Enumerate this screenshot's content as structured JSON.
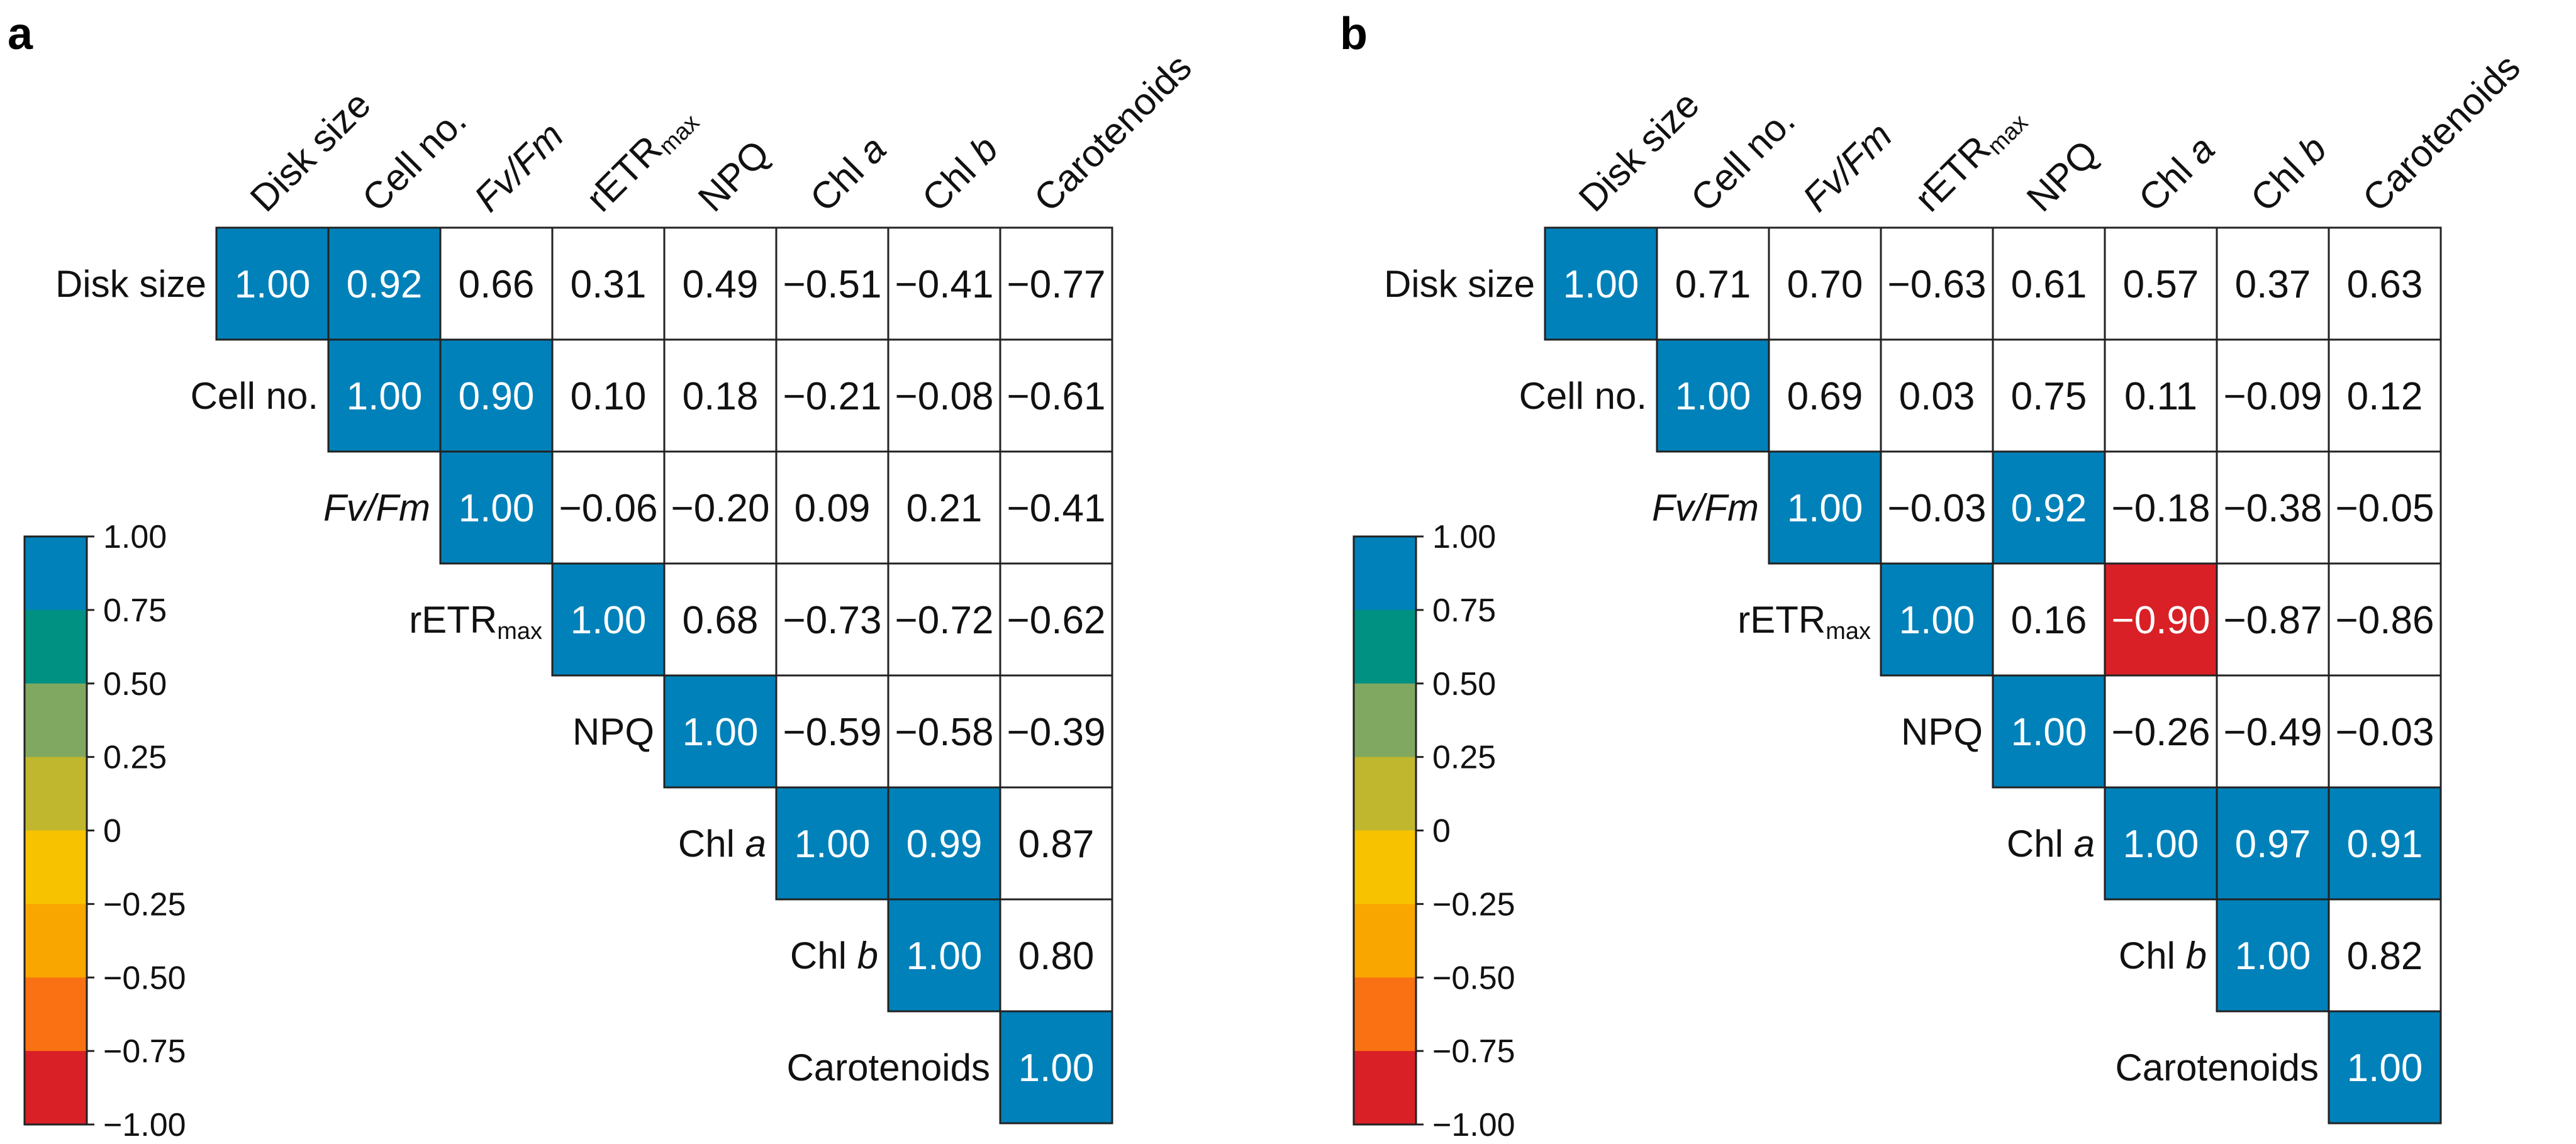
{
  "colors": {
    "significant_positive": "#0081B9",
    "significant_negative": "#D92027",
    "neutral": "#FFFFFF",
    "grid": "#222222"
  },
  "colorbar": {
    "ticks": [
      "1.00",
      "0.75",
      "0.50",
      "0.25",
      "0",
      "−0.25",
      "−0.50",
      "−0.75",
      "−1.00"
    ],
    "bands": [
      "#0081B9",
      "#009182",
      "#80A860",
      "#C0B72E",
      "#F7C300",
      "#F9A600",
      "#F97112",
      "#D92027"
    ]
  },
  "chart_data": [
    {
      "type": "heatmap",
      "panel": "a",
      "title": "",
      "variables": [
        [
          {
            "t": "Disk size"
          }
        ],
        [
          {
            "t": "Cell no."
          }
        ],
        [
          {
            "t": "Fv/Fm",
            "i": 1
          }
        ],
        [
          {
            "t": "rETR"
          },
          {
            "t": "max",
            "sub": 1
          }
        ],
        [
          {
            "t": "NPQ"
          }
        ],
        [
          {
            "t": "Chl "
          },
          {
            "t": "a",
            "i": 1
          }
        ],
        [
          {
            "t": "Chl "
          },
          {
            "t": "b",
            "i": 1
          }
        ],
        [
          {
            "t": "Carotenoids"
          }
        ]
      ],
      "values": [
        [
          "1.00",
          "0.92",
          "0.66",
          "0.31",
          "0.49",
          "−0.51",
          "−0.41",
          "−0.77"
        ],
        [
          null,
          "1.00",
          "0.90",
          "0.10",
          "0.18",
          "−0.21",
          "−0.08",
          "−0.61"
        ],
        [
          null,
          null,
          "1.00",
          "−0.06",
          "−0.20",
          "0.09",
          "0.21",
          "−0.41"
        ],
        [
          null,
          null,
          null,
          "1.00",
          "0.68",
          "−0.73",
          "−0.72",
          "−0.62"
        ],
        [
          null,
          null,
          null,
          null,
          "1.00",
          "−0.59",
          "−0.58",
          "−0.39"
        ],
        [
          null,
          null,
          null,
          null,
          null,
          "1.00",
          "0.99",
          "0.87"
        ],
        [
          null,
          null,
          null,
          null,
          null,
          null,
          "1.00",
          "0.80"
        ],
        [
          null,
          null,
          null,
          null,
          null,
          null,
          null,
          "1.00"
        ]
      ],
      "highlighted": [
        [
          0,
          0
        ],
        [
          0,
          1
        ],
        [
          1,
          1
        ],
        [
          1,
          2
        ],
        [
          2,
          2
        ],
        [
          3,
          3
        ],
        [
          4,
          4
        ],
        [
          5,
          5
        ],
        [
          5,
          6
        ],
        [
          6,
          6
        ],
        [
          7,
          7
        ]
      ],
      "color_range": [
        -1,
        1
      ]
    },
    {
      "type": "heatmap",
      "panel": "b",
      "title": "",
      "variables": [
        [
          {
            "t": "Disk size"
          }
        ],
        [
          {
            "t": "Cell no."
          }
        ],
        [
          {
            "t": "Fv/Fm",
            "i": 1
          }
        ],
        [
          {
            "t": "rETR"
          },
          {
            "t": "max",
            "sub": 1
          }
        ],
        [
          {
            "t": "NPQ"
          }
        ],
        [
          {
            "t": "Chl "
          },
          {
            "t": "a",
            "i": 1
          }
        ],
        [
          {
            "t": "Chl "
          },
          {
            "t": "b",
            "i": 1
          }
        ],
        [
          {
            "t": "Carotenoids"
          }
        ]
      ],
      "values": [
        [
          "1.00",
          "0.71",
          "0.70",
          "−0.63",
          "0.61",
          "0.57",
          "0.37",
          "0.63"
        ],
        [
          null,
          "1.00",
          "0.69",
          "0.03",
          "0.75",
          "0.11",
          "−0.09",
          "0.12"
        ],
        [
          null,
          null,
          "1.00",
          "−0.03",
          "0.92",
          "−0.18",
          "−0.38",
          "−0.05"
        ],
        [
          null,
          null,
          null,
          "1.00",
          "0.16",
          "−0.90",
          "−0.87",
          "−0.86"
        ],
        [
          null,
          null,
          null,
          null,
          "1.00",
          "−0.26",
          "−0.49",
          "−0.03"
        ],
        [
          null,
          null,
          null,
          null,
          null,
          "1.00",
          "0.97",
          "0.91"
        ],
        [
          null,
          null,
          null,
          null,
          null,
          null,
          "1.00",
          "0.82"
        ],
        [
          null,
          null,
          null,
          null,
          null,
          null,
          null,
          "1.00"
        ]
      ],
      "highlighted": [
        [
          0,
          0
        ],
        [
          1,
          1
        ],
        [
          2,
          2
        ],
        [
          2,
          4
        ],
        [
          3,
          3
        ],
        [
          3,
          5
        ],
        [
          4,
          4
        ],
        [
          5,
          5
        ],
        [
          5,
          6
        ],
        [
          5,
          7
        ],
        [
          6,
          6
        ],
        [
          7,
          7
        ]
      ],
      "color_range": [
        -1,
        1
      ]
    }
  ]
}
